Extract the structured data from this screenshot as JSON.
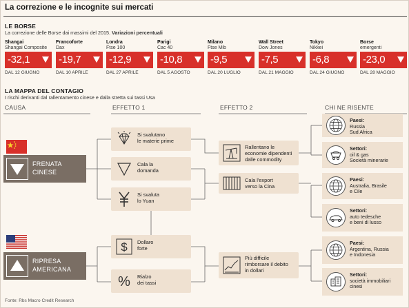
{
  "title": "La correzione e le incognite sui mercati",
  "borse": {
    "heading": "LE BORSE",
    "subtitle_plain": "La correzione delle Borse dai massimi del 2015. ",
    "subtitle_bold": "Variazioni percentuali",
    "markets": [
      {
        "city": "Shangai",
        "index": "Shangai Composite",
        "value": "-32,1",
        "date": "DAL 12 GIUGNO"
      },
      {
        "city": "Francoforte",
        "index": "Dax",
        "value": "-19,7",
        "date": "DAL 10 APRILE"
      },
      {
        "city": "Londra",
        "index": "Ftse 100",
        "value": "-12,9",
        "date": "DAL 27 APRILE"
      },
      {
        "city": "Parigi",
        "index": "Cac 40",
        "value": "-10,8",
        "date": "DAL 5 AGOSTO"
      },
      {
        "city": "Milano",
        "index": "Ftse Mib",
        "value": "-9,5",
        "date": "DAL 20 LUGLIO"
      },
      {
        "city": "Wall Street",
        "index": "Dow Jones",
        "value": "-7,5",
        "date": "DAL 21 MAGGIO"
      },
      {
        "city": "Tokyo",
        "index": "Nikkei",
        "value": "-6,8",
        "date": "DAL 24 GIUGNO"
      },
      {
        "city": "Borse",
        "index": "emergenti",
        "value": "-23,0",
        "date": "DAL 28 MAGGIO"
      }
    ]
  },
  "mappa": {
    "heading": "LA MAPPA DEL CONTAGIO",
    "subtitle": "I rischi derivanti dal rallentamento cinese e dalla stretta sui tassi Usa",
    "columns": [
      "CAUSA",
      "EFFETTO 1",
      "EFFETTO 2",
      "CHI NE RISENTE"
    ],
    "causes": [
      {
        "line1": "FRENATA",
        "line2": "CINESE",
        "icon": "triangle-down-icon"
      },
      {
        "line1": "RIPRESA",
        "line2": "AMERICANA",
        "icon": "triangle-up-icon"
      }
    ],
    "effect1": [
      {
        "line1": "Si svalutano",
        "line2": "le materie prime",
        "icon": "diamond-icon"
      },
      {
        "line1": "Cala la",
        "line2": "domanda",
        "icon": "triangle-down-outline-icon"
      },
      {
        "line1": "Si svaluta",
        "line2": "lo Yuan",
        "icon": "yuan-icon"
      },
      {
        "line1": "Dollaro",
        "line2": "forte",
        "icon": "dollar-icon"
      },
      {
        "line1": "Rialzo",
        "line2": "dei tassi",
        "icon": "percent-icon"
      }
    ],
    "effect2": [
      {
        "line1": "Rallentano le",
        "line2": "economie dipendenti",
        "line3": "dalle commodity",
        "icon": "oil-pump-icon"
      },
      {
        "line1": "Cala l'export",
        "line2": "verso la Cina",
        "line3": "",
        "icon": "container-icon"
      },
      {
        "line1": "Più difficile",
        "line2": "rimborsare il debito",
        "line3": "in dollari",
        "icon": "chart-icon"
      }
    ],
    "affected": [
      {
        "label": "Paesi:",
        "line1": "Russia",
        "line2": "Sud Africa",
        "line3": "",
        "icon": "globe-icon"
      },
      {
        "label": "Settori:",
        "line1": "oil & gas",
        "line2": "Società minerarie",
        "line3": "",
        "icon": "mining-cart-icon"
      },
      {
        "label": "Paesi:",
        "line1": "Australia, Brasile",
        "line2": "e Cile",
        "line3": "",
        "icon": "globe-icon"
      },
      {
        "label": "Settori:",
        "line1": "auto tedesche",
        "line2": "e beni di lusso",
        "line3": "",
        "icon": "car-icon"
      },
      {
        "label": "Paesi:",
        "line1": "Argentina, Russia",
        "line2": "e Indonesia",
        "line3": "",
        "icon": "globe-icon"
      },
      {
        "label": "Settori:",
        "line1": "società immobiliari",
        "line2": "cinesi",
        "line3": "",
        "icon": "buildings-icon"
      }
    ]
  },
  "source": "Fonte: Rbs Macro Credit Research",
  "colors": {
    "accent_red": "#d8302a",
    "cause_box": "#7a6e64",
    "effect_box": "#efe1d1",
    "background": "#fbf6ef"
  }
}
